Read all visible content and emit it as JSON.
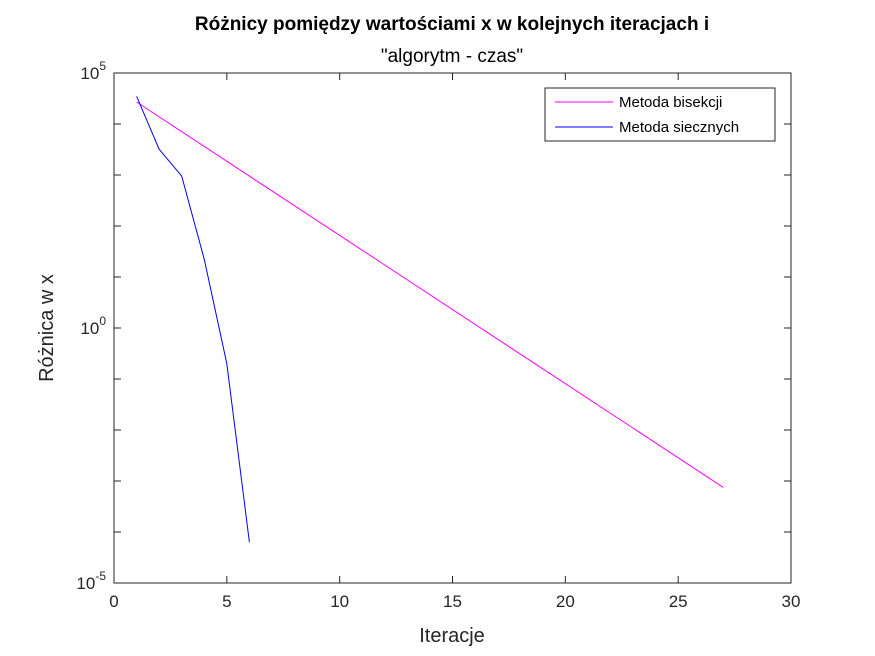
{
  "chart_data": {
    "type": "line",
    "title": "Różnicy pomiędzy wartościami x w kolejnych iteracjach i",
    "subtitle": "\"algorytm - czas\"",
    "xlabel": "Iteracje",
    "ylabel": "Różnica w x",
    "xlim": [
      0,
      30
    ],
    "ylim": [
      1e-05,
      100000
    ],
    "yscale": "log",
    "grid": false,
    "legend_position": "top-right",
    "x_ticks": [
      "0",
      "5",
      "10",
      "15",
      "20",
      "25",
      "30"
    ],
    "y_ticks": [
      {
        "base": "10",
        "exp": "5",
        "value": 100000
      },
      {
        "base": "10",
        "exp": "0",
        "value": 1
      },
      {
        "base": "10",
        "exp": "-5",
        "value": 1e-05
      }
    ],
    "series": [
      {
        "name": "Metoda bisekcji",
        "color": "#ff00ff",
        "x": [
          1,
          27
        ],
        "y": [
          27000,
          0.00075
        ]
      },
      {
        "name": "Metoda siecznych",
        "color": "#0000ff",
        "x": [
          1,
          2,
          3,
          4,
          5,
          6
        ],
        "y": [
          35000,
          3200,
          950,
          22,
          0.2,
          6.3e-05
        ]
      }
    ]
  }
}
